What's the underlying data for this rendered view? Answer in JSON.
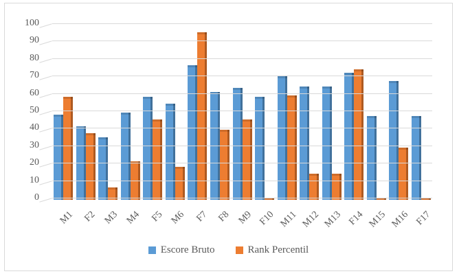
{
  "chart_data": {
    "type": "bar",
    "title": "",
    "xlabel": "",
    "ylabel": "",
    "ylim": [
      0,
      100
    ],
    "ytick_step": 10,
    "yticks": [
      0,
      10,
      20,
      30,
      40,
      50,
      60,
      70,
      80,
      90,
      100
    ],
    "grid": true,
    "legend_position": "bottom",
    "categories": [
      "M1",
      "F2",
      "M3",
      "M4",
      "F5",
      "M6",
      "F7",
      "F8",
      "M9",
      "F10",
      "M11",
      "M12",
      "M13",
      "F14",
      "M15",
      "M16",
      "F17"
    ],
    "series": [
      {
        "name": "Escore Bruto",
        "color": "#5B9BD5",
        "edge_color": "#41719C",
        "values": [
          49,
          42,
          36,
          50,
          59,
          55,
          77,
          62,
          64,
          59,
          71,
          65,
          65,
          73,
          48,
          68,
          48
        ]
      },
      {
        "name": "Rank Percentil",
        "color": "#ED7D31",
        "edge_color": "#AE5A21",
        "values": [
          59,
          38,
          7,
          22,
          46,
          19,
          96,
          40,
          46,
          1,
          60,
          15,
          15,
          75,
          1,
          30,
          1
        ]
      }
    ]
  },
  "colors": {
    "gridline": "#d9d9d9",
    "frame_border": "#d9d9d9",
    "axis_text": "#595959",
    "background": "#ffffff"
  }
}
